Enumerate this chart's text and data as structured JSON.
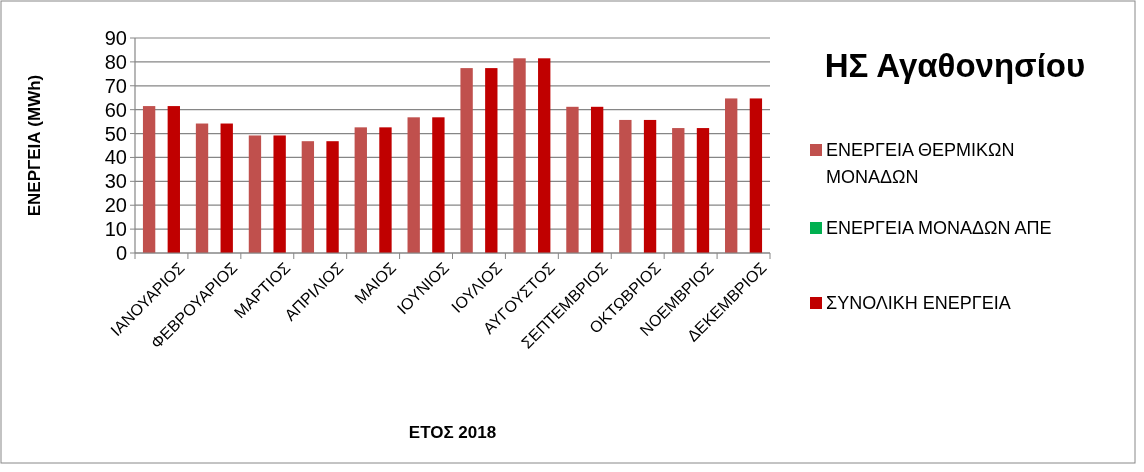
{
  "chart_data": {
    "type": "bar",
    "title": "ΗΣ Αγαθονησίου",
    "xlabel": "ΕΤΟΣ 2018",
    "ylabel": "ΕΝΕΡΓΕΙΑ (MWh)",
    "categories": [
      "ΙΑΝΟΥΑΡΙΟΣ",
      "ΦΕΒΡΟΥΑΡΙΟΣ",
      "ΜΑΡΤΙΟΣ",
      "ΑΠΡΙΛΙΟΣ",
      "ΜΑΙΟΣ",
      "ΙΟΥΝΙΟΣ",
      "ΙΟΥΛΙΟΣ",
      "ΑΥΓΟΥΣΤΟΣ",
      "ΣΕΠΤΕΜΒΡΙΟΣ",
      "ΟΚΤΩΒΡΙΟΣ",
      "ΝΟΕΜΒΡΙΟΣ",
      "ΔΕΚΕΜΒΡΙΟΣ"
    ],
    "series": [
      {
        "name": "ΕΝΕΡΓΕΙΑ ΘΕΡΜΙΚΩΝ ΜΟΝΑΔΩΝ",
        "color": "#c0504d",
        "values": [
          61.5,
          54.2,
          49.2,
          46.8,
          52.6,
          56.8,
          77.4,
          81.5,
          61.2,
          55.7,
          52.3,
          64.7
        ]
      },
      {
        "name": "ΕΝΕΡΓΕΙΑ ΜΟΝΑΔΩΝ ΑΠΕ",
        "color": "#00b050",
        "values": [
          0,
          0,
          0,
          0,
          0,
          0,
          0,
          0,
          0,
          0,
          0,
          0
        ]
      },
      {
        "name": "ΣΥΝΟΛΙΚΗ ΕΝΕΡΓΕΙΑ",
        "color": "#c00000",
        "values": [
          61.5,
          54.2,
          49.2,
          46.8,
          52.6,
          56.8,
          77.4,
          81.5,
          61.2,
          55.7,
          52.3,
          64.7
        ]
      }
    ],
    "ylim": [
      0,
      90
    ],
    "yticks": [
      0,
      10,
      20,
      30,
      40,
      50,
      60,
      70,
      80,
      90
    ],
    "grid": "y",
    "legend": "right"
  }
}
